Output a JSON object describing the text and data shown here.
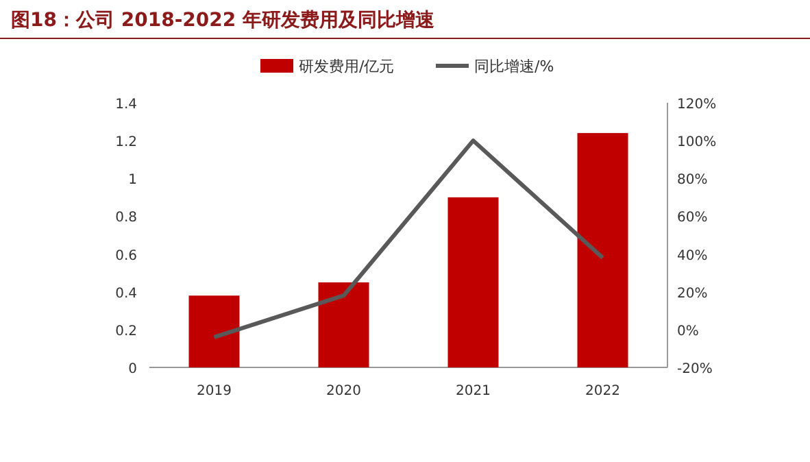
{
  "chart_data": {
    "type": "bar",
    "title": "图18：公司 2018-2022 年研发费用及同比增速",
    "categories": [
      "2019",
      "2020",
      "2021",
      "2022"
    ],
    "series": [
      {
        "name": "研发费用/亿元",
        "color": "#c00000",
        "values": [
          0.38,
          0.45,
          0.9,
          1.24
        ]
      },
      {
        "name": "同比增速/%",
        "type": "line",
        "axis": "y2",
        "color": "#595959",
        "values": [
          -4,
          18,
          100,
          38
        ]
      }
    ],
    "ylim": [
      0,
      1.4
    ],
    "yticks": [
      0,
      0.2,
      0.4,
      0.6,
      0.8,
      1,
      1.2,
      1.4
    ],
    "y2lim": [
      -20,
      120
    ],
    "y2ticks": [
      {
        "value": -20,
        "label": "-20%"
      },
      {
        "value": 0,
        "label": "0%"
      },
      {
        "value": 20,
        "label": "20%"
      },
      {
        "value": 40,
        "label": "40%"
      },
      {
        "value": 60,
        "label": "60%"
      },
      {
        "value": 80,
        "label": "80%"
      },
      {
        "value": 100,
        "label": "100%"
      },
      {
        "value": 120,
        "label": "120%"
      }
    ],
    "legend": "top",
    "grid": false
  }
}
